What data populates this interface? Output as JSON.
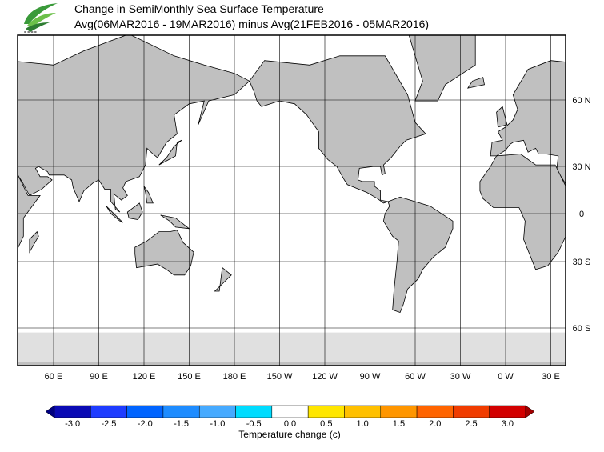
{
  "header": {
    "title": "Change in SemiMonthly Sea Surface Temperature",
    "subtitle": "Avg(06MAR2016 - 19MAR2016) minus Avg(21FEB2016 - 05MAR2016)"
  },
  "map": {
    "lon_labels": [
      "60 E",
      "90 E",
      "120 E",
      "150 E",
      "180 E",
      "150 W",
      "120 W",
      "90 W",
      "60 W",
      "30 W",
      "0 W",
      "30 E"
    ],
    "lat_labels": [
      "60 N",
      "30 N",
      "0",
      "30 S",
      "60 S"
    ],
    "land_color": "#c0c0c0",
    "ice_color": "#e0e0e0"
  },
  "colorbar": {
    "title": "Temperature change  (c)",
    "levels": [
      {
        "value": -3,
        "label": "-3.0"
      },
      {
        "value": -2.5,
        "label": "-2.5"
      },
      {
        "value": -2,
        "label": "-2.0"
      },
      {
        "value": -1.5,
        "label": "-1.5"
      },
      {
        "value": -1,
        "label": "-1.0"
      },
      {
        "value": -0.5,
        "label": "-0.5"
      },
      {
        "value": 0,
        "label": "0.0"
      },
      {
        "value": 0.5,
        "label": "0.5"
      },
      {
        "value": 1,
        "label": "1.0"
      },
      {
        "value": 1.5,
        "label": "1.5"
      },
      {
        "value": 2,
        "label": "2.0"
      },
      {
        "value": 2.5,
        "label": "2.5"
      },
      {
        "value": 3,
        "label": "3.0"
      }
    ],
    "colors": [
      "#0a0ab4",
      "#1e3cff",
      "#0064ff",
      "#1e8cff",
      "#46aaff",
      "#00dcff",
      "#ffffff",
      "#ffe600",
      "#ffc000",
      "#ff9600",
      "#ff6400",
      "#f03c00",
      "#d20000"
    ],
    "under_color": "#000080",
    "over_color": "#a00000"
  }
}
